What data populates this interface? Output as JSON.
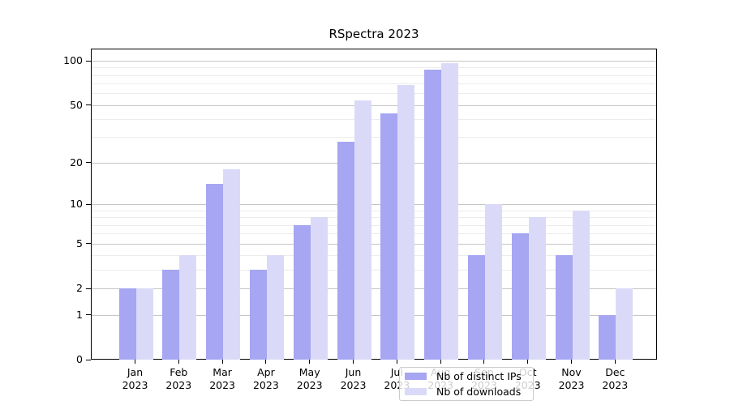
{
  "title": "RSpectra 2023",
  "chart_data": {
    "type": "bar",
    "title": "RSpectra 2023",
    "scale": "log1p",
    "categories": [
      "Jan",
      "Feb",
      "Mar",
      "Apr",
      "May",
      "Jun",
      "Jul",
      "Aug",
      "Sep",
      "Oct",
      "Nov",
      "Dec"
    ],
    "year_label": "2023",
    "series": [
      {
        "name": "Nb of distinct IPs",
        "color": "#a6a6f2",
        "values": [
          2,
          3,
          14,
          3,
          7,
          28,
          44,
          87,
          4,
          6,
          4,
          1
        ]
      },
      {
        "name": "Nb of downloads",
        "color": "#dadaf8",
        "values": [
          2,
          4,
          18,
          4,
          8,
          54,
          68,
          96,
          10,
          8,
          9,
          2
        ]
      }
    ],
    "y_axis": {
      "tick_labels": [
        "0",
        "1",
        "2",
        "5",
        "10",
        "20",
        "50",
        "100"
      ],
      "tick_values": [
        0,
        1,
        2,
        5,
        10,
        20,
        50,
        100
      ],
      "minor_gridline_values": [
        3,
        4,
        6,
        7,
        8,
        9,
        30,
        40,
        60,
        70,
        80,
        90
      ],
      "ylim": [
        0,
        120
      ]
    },
    "xlabel": "",
    "ylabel": "",
    "grid": true,
    "legend_position": "bottom-center"
  },
  "colors": {
    "background": "#ffffff",
    "axis": "#000000",
    "major_grid": "#c6c6c6",
    "minor_grid": "#ececec",
    "legend_border": "#cccccc",
    "ips_bar": "#a6a6f2",
    "downloads_bar": "#dadaf8"
  }
}
